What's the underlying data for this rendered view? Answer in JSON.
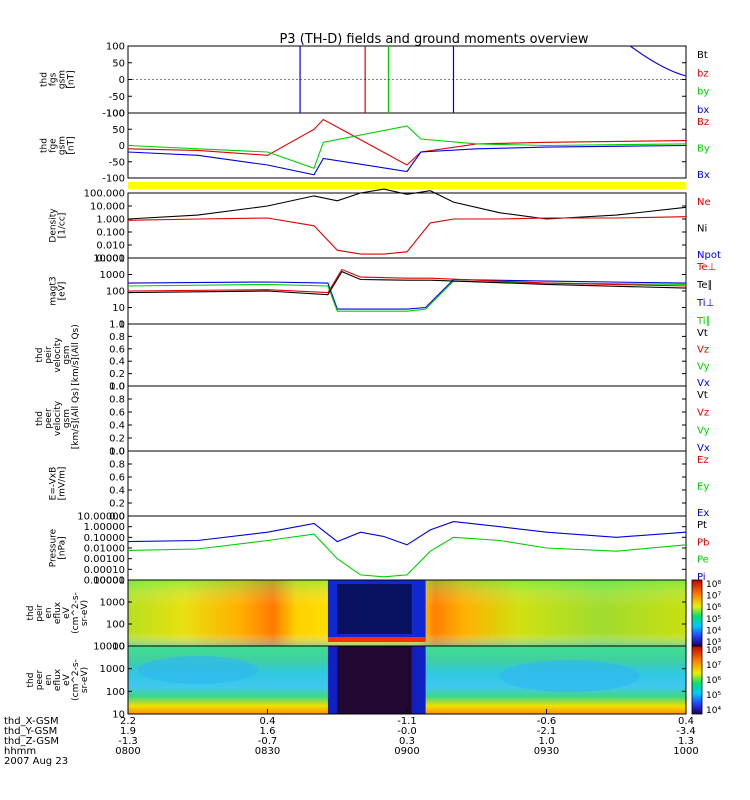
{
  "title": "P3 (TH-D) fields and ground moments overview",
  "colors": {
    "black": "#000000",
    "red": "#e00000",
    "green": "#00d000",
    "blue": "#0000e0",
    "yellow": "#ffff00"
  },
  "panels": [
    {
      "id": "fgs",
      "ylabel": [
        "thd",
        "fgs",
        "gsm",
        "[nT]"
      ],
      "ticks": [
        "100",
        "50",
        "0",
        "-50",
        "-100"
      ],
      "legend": [
        {
          "text": "Bt",
          "color": "black"
        },
        {
          "text": "bz",
          "color": "red"
        },
        {
          "text": "by",
          "color": "green"
        },
        {
          "text": "bx",
          "color": "blue"
        }
      ]
    },
    {
      "id": "fge",
      "ylabel": [
        "thd",
        "fge",
        "gsm",
        "[nT]"
      ],
      "ticks": [
        "100",
        "50",
        "0",
        "-50",
        "-100"
      ],
      "legend": [
        {
          "text": "Bz",
          "color": "red"
        },
        {
          "text": "By",
          "color": "green"
        },
        {
          "text": "Bx",
          "color": "blue"
        }
      ]
    },
    {
      "id": "flag",
      "ylabel": [],
      "ticks": [],
      "legend": []
    },
    {
      "id": "density",
      "ylabel": [
        "Density",
        "[1/cc]"
      ],
      "ticks": [
        "100.000",
        "10.000",
        "1.000",
        "0.100",
        "0.010",
        "0.001"
      ],
      "legend": [
        {
          "text": "Ne",
          "color": "red"
        },
        {
          "text": "Ni",
          "color": "black"
        },
        {
          "text": "Npot",
          "color": "blue"
        }
      ]
    },
    {
      "id": "temp",
      "ylabel": [
        "magt3",
        "[eV]"
      ],
      "ticks": [
        "10000",
        "1000",
        "100",
        "10",
        "1"
      ],
      "legend": [
        {
          "text": "Te⊥",
          "color": "red"
        },
        {
          "text": "Te∥",
          "color": "black"
        },
        {
          "text": "Ti⊥",
          "color": "blue"
        },
        {
          "text": "Ti∥",
          "color": "green"
        }
      ]
    },
    {
      "id": "vi",
      "ylabel": [
        "thd",
        "peir",
        "velocity",
        "gsm",
        "[km/s](All Qs)"
      ],
      "ticks": [
        "1.0",
        "0.8",
        "0.6",
        "0.4",
        "0.2",
        "0.0"
      ],
      "legend": [
        {
          "text": "Vt",
          "color": "black"
        },
        {
          "text": "Vz",
          "color": "red"
        },
        {
          "text": "Vy",
          "color": "green"
        },
        {
          "text": "Vx",
          "color": "blue"
        }
      ]
    },
    {
      "id": "ve",
      "ylabel": [
        "thd",
        "peer",
        "velocity",
        "gsm",
        "[km/s](All Qs)"
      ],
      "ticks": [
        "1.0",
        "0.8",
        "0.6",
        "0.4",
        "0.2",
        "0.0"
      ],
      "legend": [
        {
          "text": "Vt",
          "color": "black"
        },
        {
          "text": "Vz",
          "color": "red"
        },
        {
          "text": "Vy",
          "color": "green"
        },
        {
          "text": "Vx",
          "color": "blue"
        }
      ]
    },
    {
      "id": "efield",
      "ylabel": [
        "E=-VxB",
        "[mV/m]"
      ],
      "ticks": [
        "1.0",
        "0.8",
        "0.6",
        "0.4",
        "0.2",
        "0.0"
      ],
      "legend": [
        {
          "text": "Ez",
          "color": "red"
        },
        {
          "text": "Ey",
          "color": "green"
        },
        {
          "text": "Ex",
          "color": "blue"
        }
      ]
    },
    {
      "id": "pressure",
      "ylabel": [
        "Pressure",
        "[nPa]"
      ],
      "ticks": [
        "10.00000",
        "1.00000",
        "0.10000",
        "0.01000",
        "0.00100",
        "0.00010",
        "0.00001"
      ],
      "legend": [
        {
          "text": "Pt",
          "color": "black"
        },
        {
          "text": "Pb",
          "color": "red"
        },
        {
          "text": "Pe",
          "color": "green"
        },
        {
          "text": "Pi",
          "color": "blue"
        }
      ]
    },
    {
      "id": "ispec",
      "ylabel": [
        "thd",
        "peir",
        "en",
        "eflux",
        "eV",
        "(cm^2-s-",
        "sr-eV)"
      ],
      "ticks": [
        "10000",
        "1000",
        "100",
        "10"
      ],
      "colorbar_ticks": [
        "10⁸",
        "10⁷",
        "10⁶",
        "10⁵",
        "10⁴",
        "10³"
      ],
      "legend": []
    },
    {
      "id": "espec",
      "ylabel": [
        "thd",
        "peer",
        "en",
        "eflux",
        "eV",
        "(cm^2-s-",
        "sr-eV)"
      ],
      "ticks": [
        "10000",
        "1000",
        "100",
        "10"
      ],
      "colorbar_ticks": [
        "10⁸",
        "10⁷",
        "10⁶",
        "10⁵",
        "10⁴"
      ],
      "legend": []
    }
  ],
  "chart_data": {
    "type": "line",
    "title": "P3 (TH-D) fields and ground moments overview",
    "date": "2007 Aug 23",
    "x_axis": {
      "row_labels": [
        "thd_X-GSM",
        "thd_Y-GSM",
        "thd_Z-GSM",
        "hhmm"
      ],
      "columns": [
        [
          "2.2",
          "1.9",
          "-1.3",
          "0800"
        ],
        [
          "0.4",
          "1.6",
          "-0.7",
          "0830"
        ],
        [
          "-1.1",
          "-0.0",
          "0.3",
          "0900"
        ],
        [
          "-0.6",
          "-2.1",
          "1.0",
          "0930"
        ],
        [
          "0.4",
          "-3.4",
          "1.3",
          "1000"
        ]
      ],
      "time_range_hhmm": [
        "0800",
        "1000"
      ]
    },
    "series": [
      {
        "panel": "density",
        "name": "Ni",
        "x_hhmm": [
          "0800",
          "0815",
          "0830",
          "0840",
          "0845",
          "0850",
          "0855",
          "0900",
          "0905",
          "0910",
          "0920",
          "0930",
          "0945",
          "1000"
        ],
        "values": [
          1.0,
          2.0,
          10.0,
          60.0,
          25.0,
          100.0,
          200.0,
          80.0,
          150.0,
          20.0,
          3.0,
          1.0,
          2.0,
          8.0
        ]
      },
      {
        "panel": "density",
        "name": "Ne",
        "x_hhmm": [
          "0800",
          "0815",
          "0830",
          "0840",
          "0845",
          "0850",
          "0855",
          "0900",
          "0905",
          "0910",
          "0920",
          "0930",
          "0945",
          "1000"
        ],
        "values": [
          0.8,
          1.0,
          1.2,
          0.3,
          0.004,
          0.002,
          0.002,
          0.003,
          0.5,
          1.0,
          1.0,
          1.2,
          1.2,
          1.5
        ]
      },
      {
        "panel": "temp",
        "name": "Ti⊥",
        "x_hhmm": [
          "0800",
          "0830",
          "0843",
          "0845",
          "0900",
          "0904",
          "0910",
          "0930",
          "1000"
        ],
        "values": [
          300,
          350,
          300,
          8,
          8,
          10,
          500,
          400,
          300
        ]
      },
      {
        "panel": "temp",
        "name": "Ti∥",
        "x_hhmm": [
          "0800",
          "0830",
          "0843",
          "0845",
          "0900",
          "0904",
          "0910",
          "0930",
          "1000"
        ],
        "values": [
          200,
          250,
          200,
          6,
          6,
          8,
          400,
          300,
          250
        ]
      },
      {
        "panel": "temp",
        "name": "Te⊥",
        "x_hhmm": [
          "0800",
          "0830",
          "0843",
          "0846",
          "0850",
          "0900",
          "0905",
          "0930",
          "1000"
        ],
        "values": [
          100,
          120,
          80,
          2000,
          700,
          600,
          600,
          300,
          200
        ]
      },
      {
        "panel": "temp",
        "name": "Te∥",
        "x_hhmm": [
          "0800",
          "0830",
          "0843",
          "0846",
          "0850",
          "0900",
          "0905",
          "0930",
          "1000"
        ],
        "values": [
          80,
          100,
          60,
          1500,
          500,
          450,
          450,
          250,
          150
        ]
      },
      {
        "panel": "pressure",
        "name": "Pi",
        "x_hhmm": [
          "0800",
          "0815",
          "0830",
          "0840",
          "0845",
          "0850",
          "0855",
          "0900",
          "0905",
          "0910",
          "0920",
          "0930",
          "0945",
          "1000"
        ],
        "values": [
          0.04,
          0.05,
          0.3,
          2.0,
          0.04,
          0.3,
          0.12,
          0.02,
          0.5,
          3.0,
          1.0,
          0.3,
          0.1,
          0.3
        ]
      },
      {
        "panel": "pressure",
        "name": "Pe",
        "x_hhmm": [
          "0800",
          "0815",
          "0830",
          "0840",
          "0845",
          "0850",
          "0855",
          "0900",
          "0905",
          "0910",
          "0920",
          "0930",
          "0945",
          "1000"
        ],
        "values": [
          0.006,
          0.008,
          0.05,
          0.2,
          0.001,
          3e-05,
          2e-05,
          3e-05,
          0.005,
          0.1,
          0.05,
          0.01,
          0.005,
          0.02
        ]
      },
      {
        "panel": "fge",
        "name": "Bz",
        "x_hhmm": [
          "0800",
          "0815",
          "0830",
          "0840",
          "0842",
          "0900",
          "0903",
          "0915",
          "0930",
          "1000"
        ],
        "values": [
          -10,
          -15,
          -30,
          50,
          80,
          -60,
          -20,
          5,
          10,
          15
        ]
      },
      {
        "panel": "fge",
        "name": "By",
        "x_hhmm": [
          "0800",
          "0815",
          "0830",
          "0840",
          "0842",
          "0900",
          "0903",
          "0915",
          "0930",
          "1000"
        ],
        "values": [
          0,
          -10,
          -20,
          -70,
          10,
          60,
          20,
          5,
          0,
          5
        ]
      },
      {
        "panel": "fge",
        "name": "Bx",
        "x_hhmm": [
          "0800",
          "0815",
          "0830",
          "0840",
          "0842",
          "0900",
          "0903",
          "0915",
          "0930",
          "1000"
        ],
        "values": [
          -20,
          -30,
          -60,
          -90,
          -40,
          -80,
          -20,
          -10,
          -5,
          0
        ]
      }
    ]
  }
}
